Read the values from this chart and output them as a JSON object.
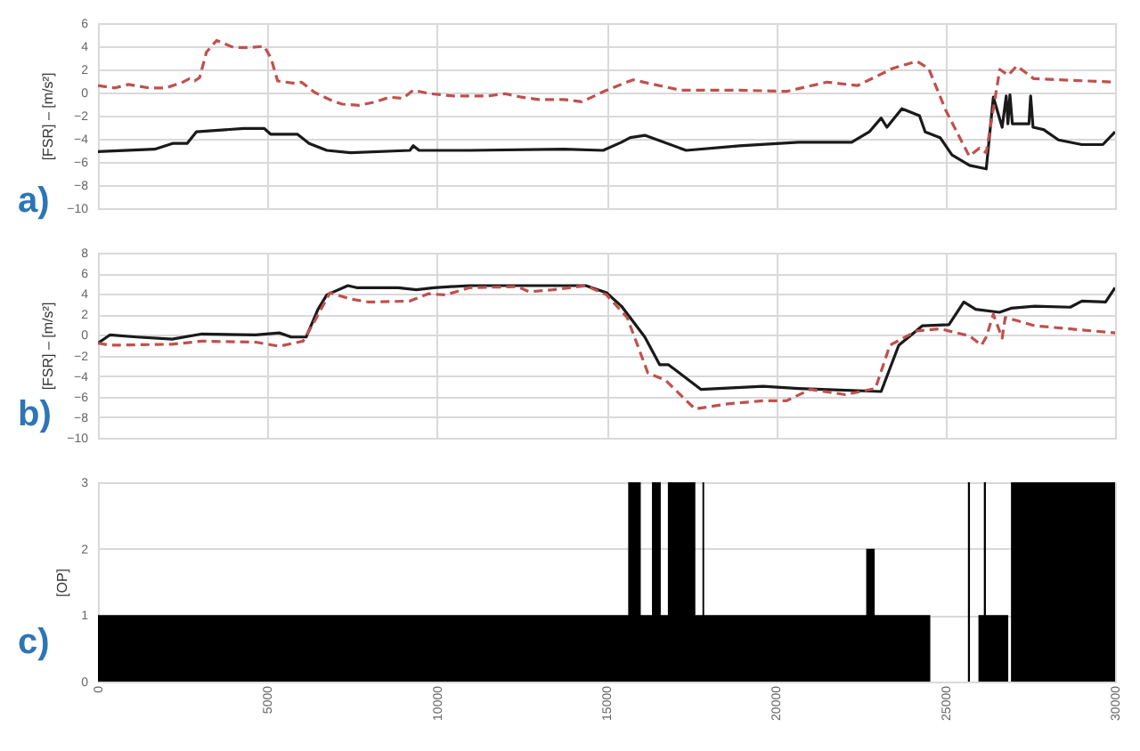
{
  "chart_data": [
    {
      "type": "line",
      "ylabel": "[FSR] – [m/s²]",
      "annotations": [
        "a)"
      ],
      "xlim": [
        0,
        30000
      ],
      "xticks": [
        0,
        5000,
        10000,
        15000,
        20000,
        25000,
        30000
      ],
      "ylim": [
        -10,
        6
      ],
      "yticks": [
        -10,
        -8,
        -6,
        -4,
        -2,
        0,
        2,
        4,
        6
      ],
      "grid": true,
      "tick_labels": "y",
      "series": [
        {
          "color": "#1a1a1a",
          "line_style": "solid",
          "x": [
            0,
            1670,
            2200,
            2630,
            2900,
            4300,
            4900,
            5090,
            5880,
            6230,
            6750,
            7450,
            9200,
            9300,
            9470,
            10960,
            13750,
            14900,
            15440,
            15700,
            16130,
            17350,
            18920,
            20660,
            22230,
            22750,
            23100,
            23270,
            23710,
            24230,
            24400,
            24840,
            25190,
            25710,
            26200,
            26410,
            26670,
            26790,
            26840,
            26900,
            26970,
            27460,
            27510,
            27580,
            27890,
            28330,
            29020,
            29640,
            30000
          ],
          "values": [
            -5.1,
            -4.9,
            -4.4,
            -4.4,
            -3.4,
            -3.1,
            -3.1,
            -3.6,
            -3.6,
            -4.4,
            -5.0,
            -5.2,
            -5.0,
            -4.6,
            -5.0,
            -5.0,
            -4.9,
            -5.0,
            -4.3,
            -3.9,
            -3.7,
            -5.0,
            -4.6,
            -4.3,
            -4.3,
            -3.4,
            -2.2,
            -3.0,
            -1.4,
            -2.0,
            -3.4,
            -3.9,
            -5.4,
            -6.3,
            -6.6,
            -0.4,
            -3.0,
            -0.3,
            -2.7,
            -0.2,
            -2.7,
            -2.7,
            -0.3,
            -3.0,
            -3.2,
            -4.1,
            -4.5,
            -4.5,
            -3.4
          ]
        },
        {
          "color": "#c0504d",
          "line_style": "dashed",
          "x": [
            0,
            500,
            900,
            1500,
            2000,
            2500,
            2700,
            2850,
            3000,
            3200,
            3500,
            4000,
            4500,
            4900,
            5100,
            5300,
            5800,
            6000,
            6400,
            6900,
            7200,
            7700,
            8200,
            8600,
            9000,
            9300,
            9800,
            10500,
            11500,
            12000,
            12500,
            13000,
            13750,
            14270,
            15000,
            15780,
            17180,
            18920,
            20310,
            21500,
            22400,
            23450,
            24150,
            24500,
            25000,
            25700,
            26000,
            26200,
            26600,
            26850,
            27100,
            27600,
            30000
          ],
          "values": [
            0.6,
            0.4,
            0.7,
            0.4,
            0.4,
            0.9,
            1.2,
            1.0,
            1.3,
            3.5,
            4.5,
            3.9,
            3.9,
            4.0,
            3.0,
            1.0,
            0.8,
            0.9,
            0,
            -0.7,
            -1.0,
            -1.1,
            -0.8,
            -0.4,
            -0.5,
            0.2,
            -0.1,
            -0.3,
            -0.3,
            -0.1,
            -0.4,
            -0.6,
            -0.6,
            -0.8,
            0.2,
            1.1,
            0.2,
            0.2,
            0.1,
            0.9,
            0.6,
            2.1,
            2.7,
            2.1,
            -1.5,
            -5.5,
            -4.8,
            -5.2,
            2.0,
            1.5,
            2.3,
            1.2,
            0.9
          ]
        }
      ]
    },
    {
      "type": "line",
      "ylabel": "[FSR] – [m/s²]",
      "annotations": [
        "b)"
      ],
      "xlim": [
        0,
        30000
      ],
      "xticks": [
        0,
        5000,
        10000,
        15000,
        20000,
        25000,
        30000
      ],
      "ylim": [
        -10,
        8
      ],
      "yticks": [
        -10,
        -8,
        -6,
        -4,
        -2,
        0,
        2,
        4,
        6,
        8
      ],
      "grid": true,
      "tick_labels": "y",
      "series": [
        {
          "color": "#1a1a1a",
          "line_style": "solid",
          "x": [
            0,
            350,
            1140,
            2190,
            3070,
            4650,
            5350,
            5700,
            6140,
            6490,
            6750,
            7370,
            7630,
            8860,
            9390,
            9910,
            10960,
            13750,
            14390,
            15000,
            15440,
            16130,
            16570,
            16830,
            17350,
            17790,
            19620,
            20660,
            23100,
            23620,
            24320,
            25100,
            25540,
            25890,
            26590,
            26930,
            27630,
            28680,
            29020,
            29720,
            30000
          ],
          "values": [
            -0.8,
            0.0,
            -0.2,
            -0.4,
            0.1,
            0.0,
            0.2,
            -0.2,
            -0.2,
            2.5,
            3.9,
            4.8,
            4.6,
            4.6,
            4.4,
            4.6,
            4.8,
            4.8,
            4.8,
            4.1,
            2.8,
            -0.2,
            -2.9,
            -2.9,
            -4.2,
            -5.3,
            -5.0,
            -5.2,
            -5.5,
            -1.0,
            0.9,
            1.0,
            3.2,
            2.5,
            2.2,
            2.6,
            2.8,
            2.7,
            3.3,
            3.2,
            4.6
          ]
        },
        {
          "color": "#c0504d",
          "line_style": "dashed",
          "x": [
            0,
            350,
            2190,
            3070,
            4650,
            5350,
            6050,
            6400,
            6840,
            7450,
            7980,
            9200,
            9740,
            10260,
            10960,
            12370,
            12720,
            13420,
            14390,
            15000,
            15610,
            16220,
            16740,
            17610,
            18570,
            19620,
            20310,
            21010,
            22050,
            22930,
            23360,
            24150,
            24840,
            25710,
            26060,
            26200,
            26410,
            26670,
            26760,
            27100,
            27630,
            30000
          ],
          "values": [
            -0.8,
            -1.0,
            -0.9,
            -0.6,
            -0.7,
            -1.1,
            -0.6,
            1.4,
            4.1,
            3.5,
            3.2,
            3.3,
            4.0,
            3.9,
            4.6,
            4.7,
            4.2,
            4.4,
            4.8,
            3.9,
            1.7,
            -3.7,
            -4.4,
            -7.2,
            -6.7,
            -6.4,
            -6.4,
            -5.3,
            -5.8,
            -5.2,
            -1.0,
            0.4,
            0.6,
            -0.1,
            -1.0,
            -0.2,
            2.0,
            -0.3,
            1.7,
            1.4,
            0.9,
            0.2
          ]
        }
      ]
    },
    {
      "type": "area",
      "ylabel": "[OP]",
      "annotations": [
        "c)"
      ],
      "xlim": [
        0,
        30000
      ],
      "xticks": [
        0,
        5000,
        10000,
        15000,
        20000,
        25000,
        30000
      ],
      "ylim": [
        0,
        3
      ],
      "yticks": [
        0,
        1,
        2,
        3
      ],
      "grid": "y",
      "series": [
        {
          "color": "#000000",
          "x": [
            0,
            15640,
            15640,
            16010,
            16010,
            16340,
            16340,
            16600,
            16600,
            16810,
            16810,
            17620,
            17620,
            17830,
            17830,
            17880,
            17880,
            22660,
            22660,
            22910,
            22910,
            24550,
            24550,
            25660,
            25660,
            25720,
            25720,
            25970,
            25970,
            26130,
            26130,
            26190,
            26190,
            26850,
            26850,
            26930,
            26930,
            30000
          ],
          "values": [
            1,
            1,
            3,
            3,
            1,
            1,
            3,
            3,
            1,
            1,
            3,
            3,
            1,
            1,
            3,
            3,
            1,
            1,
            2,
            2,
            1,
            1,
            0,
            0,
            3,
            3,
            0,
            0,
            1,
            1,
            3,
            3,
            1,
            1,
            0,
            0,
            3,
            3
          ]
        }
      ]
    }
  ]
}
